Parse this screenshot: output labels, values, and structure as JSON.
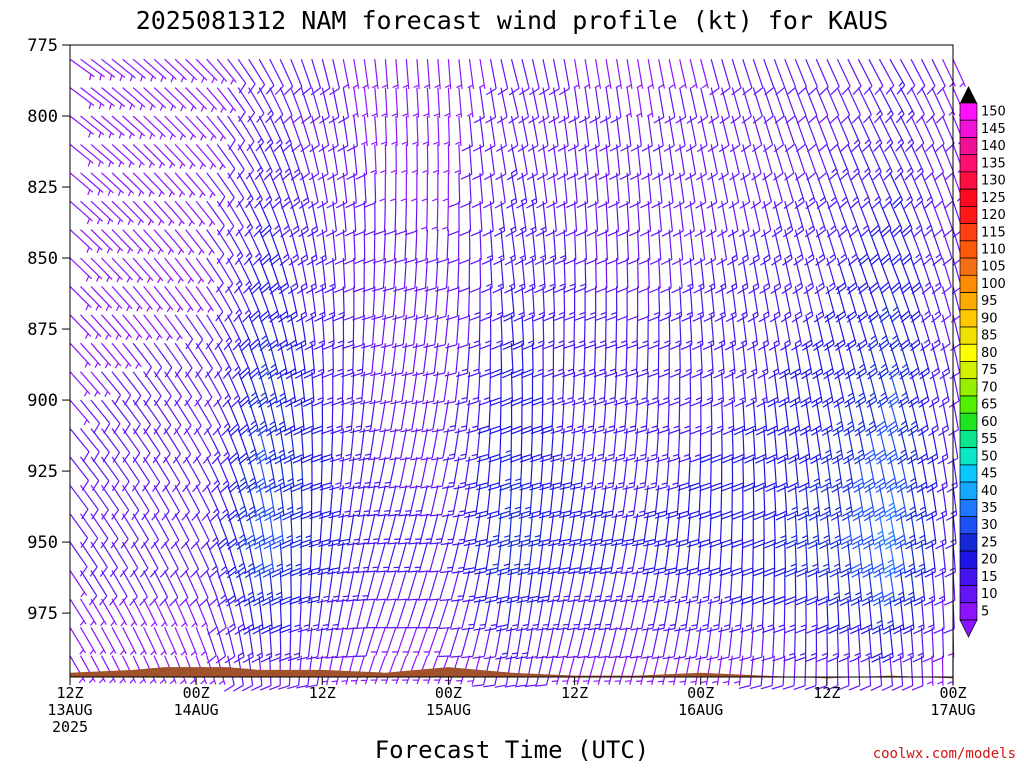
{
  "chart_data": {
    "type": "wind-barb-profile",
    "title": "2025081312 NAM forecast wind profile (kt) for KAUS",
    "xlabel": "Forecast Time (UTC)",
    "ylabel": "",
    "credit": "coolwx.com/models",
    "y_axis": {
      "ticks": [
        "775",
        "800",
        "825",
        "850",
        "875",
        "900",
        "925",
        "950",
        "975"
      ],
      "range": [
        775,
        1000
      ]
    },
    "x_axis": {
      "range_hours": [
        0,
        84
      ],
      "ticks": [
        {
          "hour": 0,
          "line1": "12Z",
          "line2": "13AUG",
          "line3": "2025"
        },
        {
          "hour": 12,
          "line1": "00Z",
          "line2": "14AUG",
          "line3": ""
        },
        {
          "hour": 24,
          "line1": "12Z",
          "line2": "",
          "line3": ""
        },
        {
          "hour": 36,
          "line1": "00Z",
          "line2": "15AUG",
          "line3": ""
        },
        {
          "hour": 48,
          "line1": "12Z",
          "line2": "",
          "line3": ""
        },
        {
          "hour": 60,
          "line1": "00Z",
          "line2": "16AUG",
          "line3": ""
        },
        {
          "hour": 72,
          "line1": "12Z",
          "line2": "",
          "line3": ""
        },
        {
          "hour": 84,
          "line1": "00Z",
          "line2": "17AUG",
          "line3": ""
        }
      ]
    },
    "colorbar": {
      "labels": [
        "150",
        "145",
        "140",
        "135",
        "130",
        "125",
        "120",
        "115",
        "110",
        "105",
        "100",
        "95",
        "90",
        "85",
        "80",
        "75",
        "70",
        "65",
        "60",
        "55",
        "50",
        "45",
        "40",
        "35",
        "30",
        "25",
        "20",
        "15",
        "10",
        "5"
      ],
      "colors": [
        "#ff10ff",
        "#f010d8",
        "#f01098",
        "#ff1070",
        "#ff1040",
        "#ff0a20",
        "#ff1818",
        "#ff4010",
        "#ff5a0a",
        "#f57014",
        "#ff8c00",
        "#ffaa00",
        "#ffc800",
        "#f0e000",
        "#ffff00",
        "#d2f000",
        "#96f000",
        "#50f000",
        "#1ee61e",
        "#0ae68c",
        "#0ae6c8",
        "#0ac8ff",
        "#14aaff",
        "#1e78ff",
        "#1e50f5",
        "#1428d7",
        "#1e14e6",
        "#4614f0",
        "#6414f5",
        "#8c14ff"
      ]
    },
    "barb_rows_hpa": [
      780,
      790,
      800,
      810,
      820,
      830,
      840,
      850,
      860,
      870,
      880,
      890,
      900,
      910,
      920,
      930,
      940,
      950,
      960,
      970,
      980,
      990
    ],
    "time_series": [
      {
        "hour": 0,
        "speed_kt": 9,
        "dir_deg": 150
      },
      {
        "hour": 12,
        "speed_kt": 11,
        "dir_deg": 160
      },
      {
        "hour": 18,
        "speed_kt": 32,
        "dir_deg": 175
      },
      {
        "hour": 24,
        "speed_kt": 22,
        "dir_deg": 190
      },
      {
        "hour": 30,
        "speed_kt": 14,
        "dir_deg": 200
      },
      {
        "hour": 36,
        "speed_kt": 13,
        "dir_deg": 200
      },
      {
        "hour": 42,
        "speed_kt": 26,
        "dir_deg": 190
      },
      {
        "hour": 48,
        "speed_kt": 20,
        "dir_deg": 195
      },
      {
        "hour": 54,
        "speed_kt": 18,
        "dir_deg": 195
      },
      {
        "hour": 60,
        "speed_kt": 20,
        "dir_deg": 190
      },
      {
        "hour": 66,
        "speed_kt": 22,
        "dir_deg": 185
      },
      {
        "hour": 72,
        "speed_kt": 26,
        "dir_deg": 180
      },
      {
        "hour": 78,
        "speed_kt": 35,
        "dir_deg": 175
      },
      {
        "hour": 84,
        "speed_kt": 14,
        "dir_deg": 180
      }
    ],
    "surface_pressure_hpa": [
      {
        "hour": 0,
        "hpa": 996
      },
      {
        "hour": 6,
        "hpa": 995
      },
      {
        "hour": 9,
        "hpa": 994
      },
      {
        "hour": 15,
        "hpa": 994
      },
      {
        "hour": 18,
        "hpa": 995
      },
      {
        "hour": 24,
        "hpa": 995
      },
      {
        "hour": 30,
        "hpa": 996
      },
      {
        "hour": 33,
        "hpa": 995
      },
      {
        "hour": 36,
        "hpa": 994
      },
      {
        "hour": 42,
        "hpa": 996
      },
      {
        "hour": 48,
        "hpa": 997
      },
      {
        "hour": 54,
        "hpa": 997
      },
      {
        "hour": 60,
        "hpa": 996
      },
      {
        "hour": 66,
        "hpa": 997
      },
      {
        "hour": 72,
        "hpa": 998
      },
      {
        "hour": 78,
        "hpa": 997
      },
      {
        "hour": 84,
        "hpa": 998
      }
    ],
    "surface_color": "#a0522d",
    "grid": false
  }
}
